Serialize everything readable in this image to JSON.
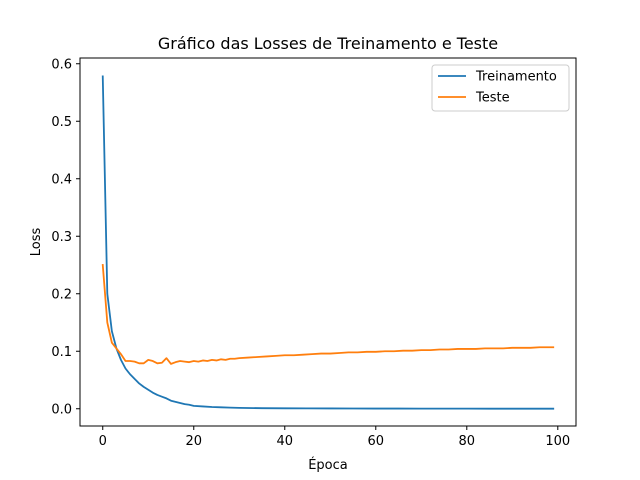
{
  "chart_data": {
    "type": "line",
    "title": "Gráfico das Losses de Treinamento e Teste",
    "xlabel": "Época",
    "ylabel": "Loss",
    "xlim": [
      -5,
      104
    ],
    "ylim": [
      -0.03,
      0.61
    ],
    "xticks": [
      0,
      20,
      40,
      60,
      80,
      100
    ],
    "yticks": [
      0.0,
      0.1,
      0.2,
      0.3,
      0.4,
      0.5,
      0.6
    ],
    "ytick_labels": [
      "0.0",
      "0.1",
      "0.2",
      "0.3",
      "0.4",
      "0.5",
      "0.6"
    ],
    "grid": false,
    "legend_position": "top-right",
    "series": [
      {
        "name": "Treinamento",
        "color": "#1f77b4",
        "x": [
          0,
          1,
          2,
          3,
          4,
          5,
          6,
          7,
          8,
          9,
          10,
          11,
          12,
          13,
          14,
          15,
          16,
          17,
          18,
          19,
          20,
          22,
          24,
          26,
          28,
          30,
          35,
          40,
          45,
          50,
          55,
          60,
          65,
          70,
          75,
          80,
          85,
          90,
          95,
          99
        ],
        "values": [
          0.578,
          0.2,
          0.135,
          0.105,
          0.085,
          0.07,
          0.06,
          0.052,
          0.044,
          0.038,
          0.033,
          0.028,
          0.024,
          0.021,
          0.018,
          0.014,
          0.012,
          0.01,
          0.008,
          0.007,
          0.005,
          0.004,
          0.003,
          0.0025,
          0.002,
          0.0015,
          0.001,
          0.0008,
          0.0006,
          0.0005,
          0.0004,
          0.0003,
          0.0003,
          0.0002,
          0.0002,
          0.0002,
          0.0001,
          0.0001,
          0.0001,
          0.0001
        ]
      },
      {
        "name": "Teste",
        "color": "#ff7f0e",
        "x": [
          0,
          1,
          2,
          3,
          4,
          5,
          6,
          7,
          8,
          9,
          10,
          11,
          12,
          13,
          14,
          15,
          16,
          17,
          18,
          19,
          20,
          21,
          22,
          23,
          24,
          25,
          26,
          27,
          28,
          29,
          30,
          32,
          34,
          36,
          38,
          40,
          42,
          44,
          46,
          48,
          50,
          52,
          54,
          56,
          58,
          60,
          62,
          64,
          66,
          68,
          70,
          72,
          74,
          76,
          78,
          80,
          82,
          84,
          86,
          88,
          90,
          92,
          94,
          96,
          98,
          99
        ],
        "values": [
          0.25,
          0.15,
          0.115,
          0.105,
          0.095,
          0.083,
          0.083,
          0.082,
          0.079,
          0.079,
          0.085,
          0.083,
          0.079,
          0.08,
          0.088,
          0.078,
          0.081,
          0.083,
          0.082,
          0.081,
          0.083,
          0.082,
          0.084,
          0.083,
          0.085,
          0.084,
          0.086,
          0.085,
          0.087,
          0.087,
          0.088,
          0.089,
          0.09,
          0.091,
          0.092,
          0.093,
          0.093,
          0.094,
          0.095,
          0.096,
          0.096,
          0.097,
          0.098,
          0.098,
          0.099,
          0.099,
          0.1,
          0.1,
          0.101,
          0.101,
          0.102,
          0.102,
          0.103,
          0.103,
          0.104,
          0.104,
          0.104,
          0.105,
          0.105,
          0.105,
          0.106,
          0.106,
          0.106,
          0.107,
          0.107,
          0.107
        ]
      }
    ]
  }
}
